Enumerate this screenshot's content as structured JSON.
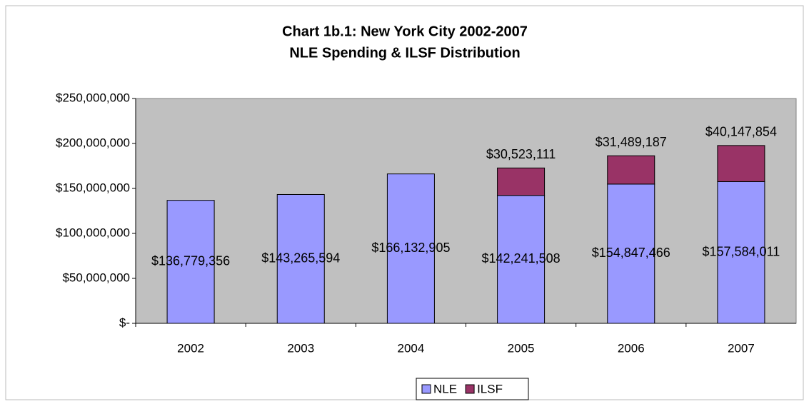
{
  "chart_data": {
    "type": "stacked-bar",
    "title": [
      "Chart 1b.1: New York City 2002-2007",
      "NLE Spending & ILSF Distribution"
    ],
    "categories": [
      "2002",
      "2003",
      "2004",
      "2005",
      "2006",
      "2007"
    ],
    "series": [
      {
        "name": "NLE",
        "color": "#9999ff",
        "values": [
          136779356,
          143265594,
          166132905,
          142241508,
          154847466,
          157584011
        ],
        "value_labels": [
          "$136,779,356",
          "$143,265,594",
          "$166,132,905",
          "$142,241,508",
          "$154,847,466",
          "$157,584,011"
        ]
      },
      {
        "name": "ILSF",
        "color": "#993366",
        "values": [
          null,
          null,
          null,
          30523111,
          31489187,
          40147854
        ],
        "value_labels": [
          null,
          null,
          null,
          "$30,523,111",
          "$31,489,187",
          "$40,147,854"
        ]
      }
    ],
    "ylim": [
      0,
      250000000
    ],
    "yticks": [
      {
        "value": 0,
        "label": "$-"
      },
      {
        "value": 50000000,
        "label": "$50,000,000"
      },
      {
        "value": 100000000,
        "label": "$100,000,000"
      },
      {
        "value": 150000000,
        "label": "$150,000,000"
      },
      {
        "value": 200000000,
        "label": "$200,000,000"
      },
      {
        "value": 250000000,
        "label": "$250,000,000"
      }
    ],
    "grid": false,
    "legend": "bottom"
  }
}
